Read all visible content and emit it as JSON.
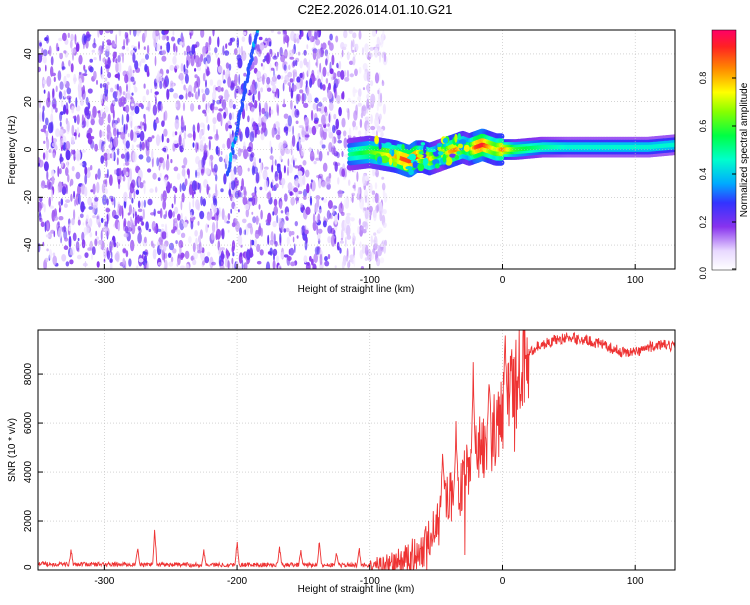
{
  "title": "C2E2.2026.014.01.10.G21",
  "chart_data": [
    {
      "type": "heatmap",
      "xlabel": "Height of straight line (km)",
      "ylabel": "Frequency (Hz)",
      "xlim": [
        -350,
        130
      ],
      "ylim": [
        -50,
        50
      ],
      "xticks": [
        -300,
        -200,
        -100,
        0,
        100
      ],
      "yticks": [
        -40,
        -20,
        0,
        20,
        40
      ],
      "colorbar": {
        "label": "Normalized spectral amplitude",
        "range": [
          0,
          1
        ],
        "ticks": [
          0.0,
          0.2,
          0.4,
          0.6,
          0.8
        ],
        "tick_labels": [
          "0.0",
          "0.2",
          "0.4",
          "0.6",
          "0.8"
        ]
      },
      "noise_region": {
        "x": [
          -350,
          -100
        ],
        "y": [
          -50,
          50
        ],
        "amplitude": [
          0.05,
          0.25
        ]
      },
      "signal_track": {
        "x": [
          -115,
          -100,
          -90,
          -80,
          -75,
          -70,
          -65,
          -60,
          -55,
          -50,
          -45,
          -40,
          -35,
          -30,
          -25,
          -20,
          -15,
          -10,
          -5,
          0,
          10,
          30,
          50,
          70,
          90,
          110,
          130
        ],
        "y": [
          -2,
          -1,
          -2,
          -3,
          -4,
          -5,
          -3,
          -3,
          -4,
          -3,
          -2,
          -1,
          0,
          1,
          0,
          1,
          2,
          1,
          0,
          0,
          0,
          1,
          1,
          1,
          1,
          1,
          2
        ],
        "amplitude": [
          0.5,
          0.6,
          0.7,
          0.8,
          0.9,
          0.9,
          0.95,
          0.7,
          0.8,
          0.6,
          0.5,
          0.8,
          0.85,
          0.7,
          0.6,
          0.9,
          0.95,
          0.8,
          0.7,
          0.85,
          0.6,
          0.5,
          0.45,
          0.45,
          0.45,
          0.45,
          0.45
        ]
      },
      "streak": {
        "x": [
          -207,
          -185
        ],
        "y": [
          -10,
          50
        ],
        "amplitude": 0.3
      }
    },
    {
      "type": "line",
      "xlabel": "Height of straight line (km)",
      "ylabel": "SNR (10 * v/v)",
      "xlim": [
        -350,
        130
      ],
      "ylim": [
        0,
        9800
      ],
      "xticks": [
        -300,
        -200,
        -100,
        0,
        100
      ],
      "yticks": [
        0,
        2000,
        4000,
        6000,
        8000
      ],
      "color": "#ee3333",
      "series": [
        {
          "x": [
            -350,
            -300,
            -250,
            -200,
            -150,
            -100,
            -80,
            -70,
            -60,
            -55,
            -50,
            -45,
            -40,
            -35,
            -30,
            -25,
            -20,
            -15,
            -10,
            -5,
            0,
            5,
            10,
            15,
            20,
            25,
            30,
            40,
            50,
            60,
            70,
            80,
            90,
            100,
            110,
            120,
            130
          ],
          "y": [
            250,
            230,
            220,
            210,
            210,
            200,
            300,
            500,
            900,
            1300,
            2000,
            2700,
            3000,
            3200,
            3700,
            4200,
            4800,
            5000,
            5400,
            5700,
            6400,
            7300,
            7800,
            8300,
            8800,
            9100,
            9200,
            9400,
            9500,
            9400,
            9300,
            9100,
            8900,
            8900,
            9100,
            9200,
            9100
          ]
        }
      ],
      "spikes": [
        {
          "x": -325,
          "y": 900
        },
        {
          "x": -275,
          "y": 1000
        },
        {
          "x": -262,
          "y": 1800
        },
        {
          "x": -225,
          "y": 900
        },
        {
          "x": -200,
          "y": 1300
        },
        {
          "x": -168,
          "y": 1100
        },
        {
          "x": -152,
          "y": 900
        },
        {
          "x": -138,
          "y": 1300
        },
        {
          "x": -125,
          "y": 800
        },
        {
          "x": -108,
          "y": 1000
        },
        {
          "x": -45,
          "y": 5200
        },
        {
          "x": -35,
          "y": 6300
        },
        {
          "x": -22,
          "y": 8800
        },
        {
          "x": -10,
          "y": 8700
        },
        {
          "x": 2,
          "y": 9800
        }
      ]
    }
  ]
}
